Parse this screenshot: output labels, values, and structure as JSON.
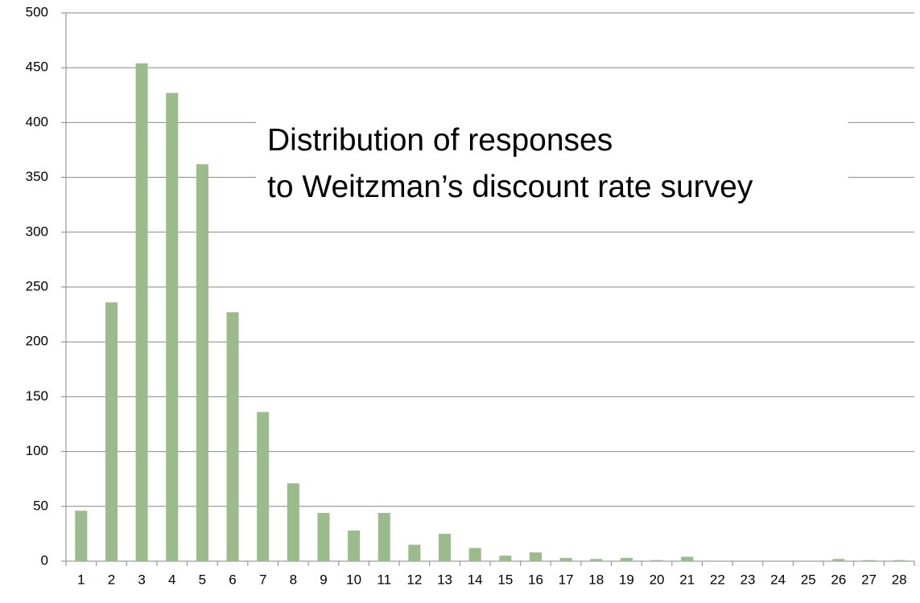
{
  "chart_data": {
    "type": "bar",
    "title": "Distribution of responses\nto Weitzman’s  discount rate survey",
    "categories": [
      "1",
      "2",
      "3",
      "4",
      "5",
      "6",
      "7",
      "8",
      "9",
      "10",
      "11",
      "12",
      "13",
      "14",
      "15",
      "16",
      "17",
      "18",
      "19",
      "20",
      "21",
      "22",
      "23",
      "24",
      "25",
      "26",
      "27",
      "28"
    ],
    "values": [
      46,
      236,
      454,
      427,
      362,
      227,
      136,
      71,
      44,
      28,
      44,
      15,
      25,
      12,
      5,
      8,
      3,
      2,
      3,
      1,
      4,
      0,
      0,
      0,
      0,
      2,
      1,
      1
    ],
    "color": "#9bbb8c",
    "ylim": [
      0,
      500
    ],
    "yticks": [
      0,
      50,
      100,
      150,
      200,
      250,
      300,
      350,
      400,
      450,
      500
    ],
    "grid": true
  }
}
